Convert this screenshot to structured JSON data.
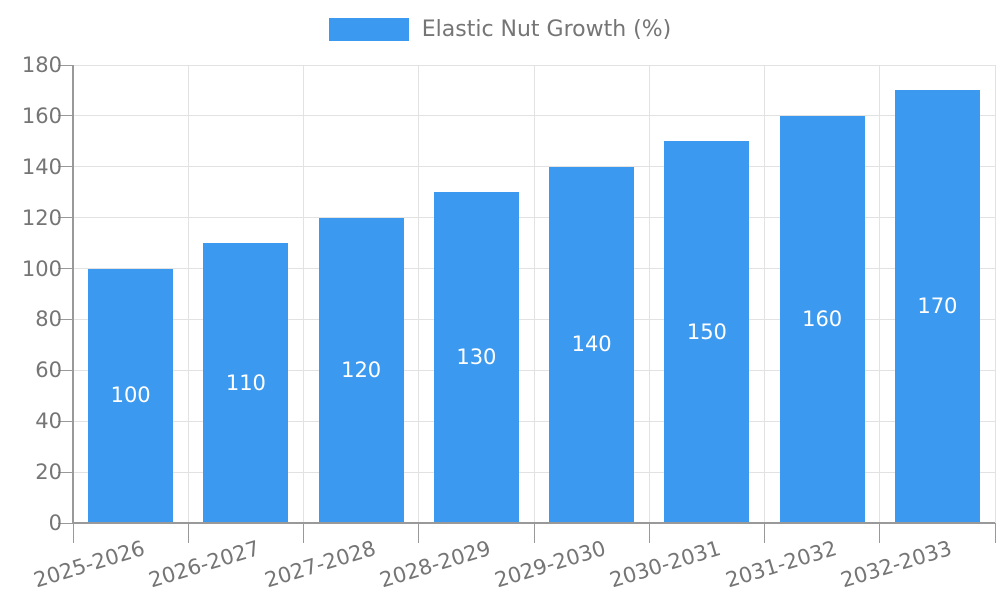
{
  "legend": {
    "label": "Elastic Nut Growth (%)"
  },
  "chart_data": {
    "type": "bar",
    "title": "Elastic Nut Growth (%)",
    "categories": [
      "2025-2026",
      "2026-2027",
      "2027-2028",
      "2028-2029",
      "2029-2030",
      "2030-2031",
      "2031-2032",
      "2032-2033"
    ],
    "values": [
      100,
      110,
      120,
      130,
      140,
      150,
      160,
      170
    ],
    "xlabel": "",
    "ylabel": "",
    "ylim": [
      0,
      180
    ],
    "ytick_step": 20,
    "grid": "on",
    "legend_position": "top-center",
    "colors": {
      "bar": "#3b99ef",
      "value_label": "#ffffff",
      "axis_text": "#757575",
      "axis_line": "#999999",
      "gridline": "#e2e2e2",
      "background": "#ffffff"
    }
  }
}
